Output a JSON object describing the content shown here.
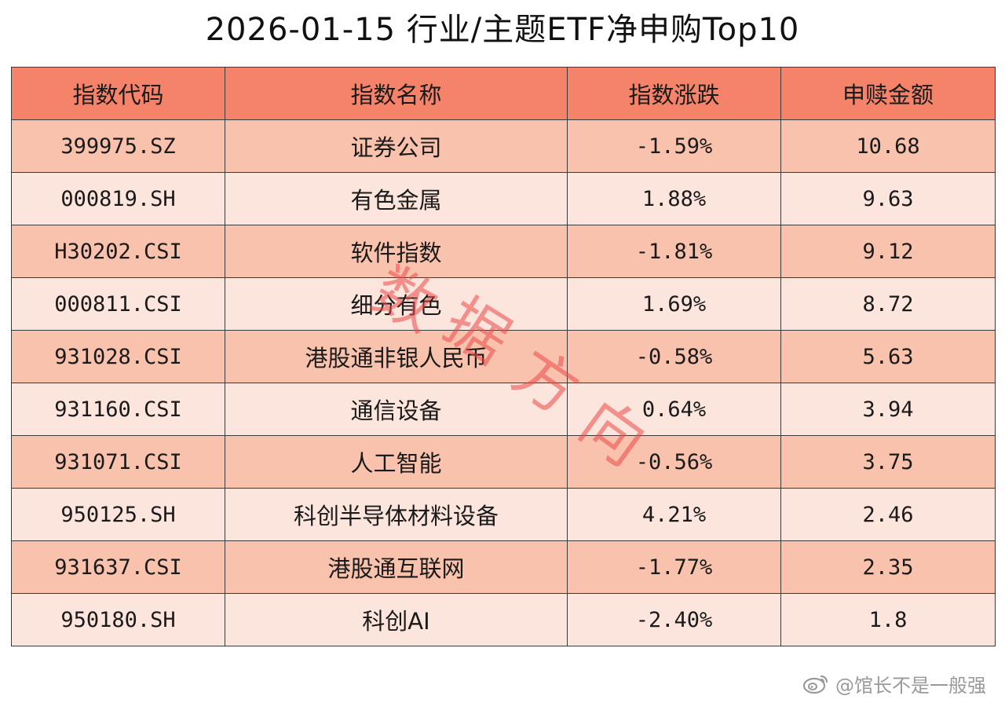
{
  "title": "2026-01-15 行业/主题ETF净申购Top10",
  "table": {
    "headers": [
      "指数代码",
      "指数名称",
      "指数涨跌",
      "申赎金额"
    ],
    "rows": [
      {
        "code": "399975.SZ",
        "name": "证券公司",
        "change": "-1.59%",
        "amount": "10.68"
      },
      {
        "code": "000819.SH",
        "name": "有色金属",
        "change": "1.88%",
        "amount": "9.63"
      },
      {
        "code": "H30202.CSI",
        "name": "软件指数",
        "change": "-1.81%",
        "amount": "9.12"
      },
      {
        "code": "000811.CSI",
        "name": "细分有色",
        "change": "1.69%",
        "amount": "8.72"
      },
      {
        "code": "931028.CSI",
        "name": "港股通非银人民币",
        "change": "-0.58%",
        "amount": "5.63"
      },
      {
        "code": "931160.CSI",
        "name": "通信设备",
        "change": "0.64%",
        "amount": "3.94"
      },
      {
        "code": "931071.CSI",
        "name": "人工智能",
        "change": "-0.56%",
        "amount": "3.75"
      },
      {
        "code": "950125.SH",
        "name": "科创半导体材料设备",
        "change": "4.21%",
        "amount": "2.46"
      },
      {
        "code": "931637.CSI",
        "name": "港股通互联网",
        "change": "-1.77%",
        "amount": "2.35"
      },
      {
        "code": "950180.SH",
        "name": "科创AI",
        "change": "-2.40%",
        "amount": "1.8"
      }
    ]
  },
  "watermark": {
    "chars": [
      "数",
      "据",
      "方",
      "向"
    ]
  },
  "signature": {
    "icon": "weibo-icon",
    "text": "@馆长不是一般强"
  },
  "colors": {
    "header_bg": "#f4836a",
    "row_odd_bg": "#f8c2ad",
    "row_even_bg": "#fce5dc",
    "border": "#3a3a3a",
    "watermark": "#eb4848"
  }
}
